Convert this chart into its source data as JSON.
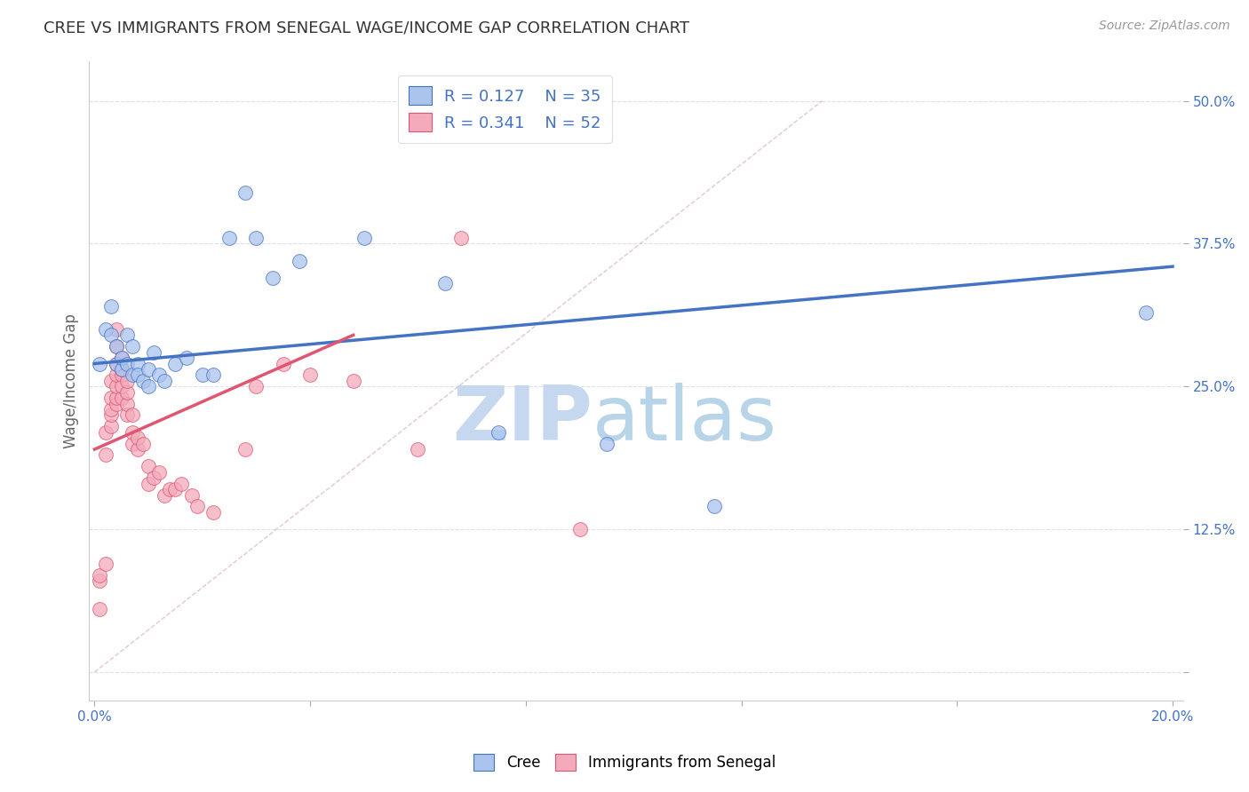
{
  "title": "CREE VS IMMIGRANTS FROM SENEGAL WAGE/INCOME GAP CORRELATION CHART",
  "source": "Source: ZipAtlas.com",
  "ylabel": "Wage/Income Gap",
  "x_ticks": [
    0.0,
    0.04,
    0.08,
    0.12,
    0.16,
    0.2
  ],
  "y_ticks_right": [
    0.0,
    0.125,
    0.25,
    0.375,
    0.5
  ],
  "y_tick_labels_right": [
    "",
    "12.5%",
    "25.0%",
    "37.5%",
    "50.0%"
  ],
  "xlim": [
    -0.001,
    0.202
  ],
  "ylim": [
    -0.025,
    0.535
  ],
  "cree_color": "#aac4ee",
  "senegal_color": "#f4aabb",
  "cree_line_color": "#4472c4",
  "senegal_line_color": "#e05570",
  "legend_R_cree": "0.127",
  "legend_N_cree": "35",
  "legend_R_senegal": "0.341",
  "legend_N_senegal": "52",
  "cree_scatter": [
    [
      0.001,
      0.27
    ],
    [
      0.002,
      0.3
    ],
    [
      0.003,
      0.295
    ],
    [
      0.003,
      0.32
    ],
    [
      0.004,
      0.27
    ],
    [
      0.004,
      0.285
    ],
    [
      0.005,
      0.265
    ],
    [
      0.005,
      0.275
    ],
    [
      0.006,
      0.295
    ],
    [
      0.006,
      0.27
    ],
    [
      0.007,
      0.26
    ],
    [
      0.007,
      0.285
    ],
    [
      0.008,
      0.27
    ],
    [
      0.008,
      0.26
    ],
    [
      0.009,
      0.255
    ],
    [
      0.01,
      0.265
    ],
    [
      0.01,
      0.25
    ],
    [
      0.011,
      0.28
    ],
    [
      0.012,
      0.26
    ],
    [
      0.013,
      0.255
    ],
    [
      0.015,
      0.27
    ],
    [
      0.017,
      0.275
    ],
    [
      0.02,
      0.26
    ],
    [
      0.022,
      0.26
    ],
    [
      0.025,
      0.38
    ],
    [
      0.028,
      0.42
    ],
    [
      0.03,
      0.38
    ],
    [
      0.033,
      0.345
    ],
    [
      0.038,
      0.36
    ],
    [
      0.05,
      0.38
    ],
    [
      0.065,
      0.34
    ],
    [
      0.075,
      0.21
    ],
    [
      0.095,
      0.2
    ],
    [
      0.115,
      0.145
    ],
    [
      0.195,
      0.315
    ]
  ],
  "senegal_scatter": [
    [
      0.001,
      0.055
    ],
    [
      0.001,
      0.08
    ],
    [
      0.001,
      0.085
    ],
    [
      0.002,
      0.095
    ],
    [
      0.002,
      0.19
    ],
    [
      0.002,
      0.21
    ],
    [
      0.003,
      0.215
    ],
    [
      0.003,
      0.225
    ],
    [
      0.003,
      0.23
    ],
    [
      0.003,
      0.24
    ],
    [
      0.003,
      0.255
    ],
    [
      0.004,
      0.235
    ],
    [
      0.004,
      0.24
    ],
    [
      0.004,
      0.25
    ],
    [
      0.004,
      0.26
    ],
    [
      0.004,
      0.27
    ],
    [
      0.004,
      0.285
    ],
    [
      0.004,
      0.3
    ],
    [
      0.005,
      0.24
    ],
    [
      0.005,
      0.25
    ],
    [
      0.005,
      0.26
    ],
    [
      0.005,
      0.265
    ],
    [
      0.005,
      0.275
    ],
    [
      0.006,
      0.225
    ],
    [
      0.006,
      0.235
    ],
    [
      0.006,
      0.245
    ],
    [
      0.006,
      0.255
    ],
    [
      0.007,
      0.2
    ],
    [
      0.007,
      0.21
    ],
    [
      0.007,
      0.225
    ],
    [
      0.008,
      0.195
    ],
    [
      0.008,
      0.205
    ],
    [
      0.009,
      0.2
    ],
    [
      0.01,
      0.165
    ],
    [
      0.01,
      0.18
    ],
    [
      0.011,
      0.17
    ],
    [
      0.012,
      0.175
    ],
    [
      0.013,
      0.155
    ],
    [
      0.014,
      0.16
    ],
    [
      0.015,
      0.16
    ],
    [
      0.016,
      0.165
    ],
    [
      0.018,
      0.155
    ],
    [
      0.019,
      0.145
    ],
    [
      0.022,
      0.14
    ],
    [
      0.028,
      0.195
    ],
    [
      0.03,
      0.25
    ],
    [
      0.035,
      0.27
    ],
    [
      0.04,
      0.26
    ],
    [
      0.048,
      0.255
    ],
    [
      0.06,
      0.195
    ],
    [
      0.068,
      0.38
    ],
    [
      0.09,
      0.125
    ]
  ],
  "background_color": "#ffffff",
  "grid_color": "#dde0ea",
  "diag_line_color": "#d8b0bc",
  "watermark_zip": "ZIP",
  "watermark_atlas": "atlas",
  "watermark_color_zip": "#c5d8f0",
  "watermark_color_atlas": "#b8d4e8"
}
